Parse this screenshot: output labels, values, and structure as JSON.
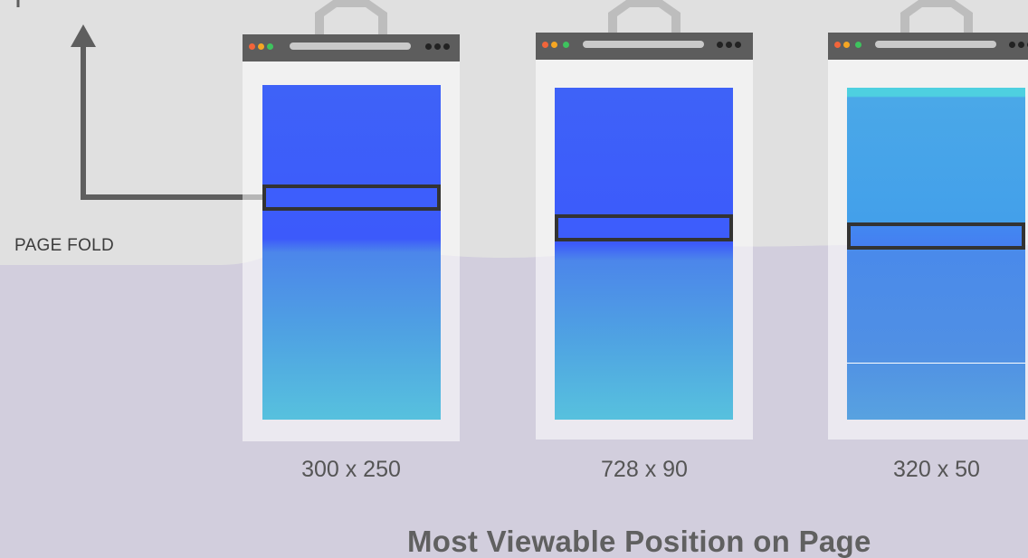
{
  "fold_label": "PAGE FOLD",
  "caption": "Most Viewable Position on Page",
  "colors": {
    "background_above_fold": "#e0e0e0",
    "background_below_fold": "#d2cedd",
    "browser_bar": "#5d5d5d",
    "ad_blue": "#3d5cfa",
    "ad_cyan": "#56c4dd",
    "highlight_border": "#333333",
    "arrow": "#5e5e5e"
  },
  "devices": [
    {
      "size_label": "300 x 250",
      "icon": "browser-window-icon"
    },
    {
      "size_label": "728 x 90",
      "icon": "browser-window-icon"
    },
    {
      "size_label": "320 x 50",
      "icon": "browser-window-icon"
    }
  ]
}
